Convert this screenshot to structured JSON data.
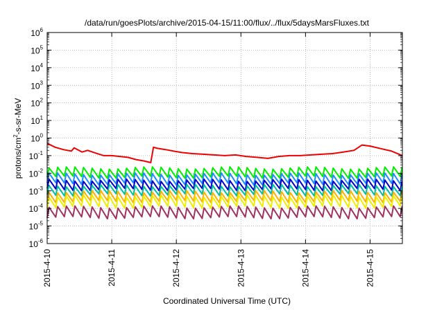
{
  "chart_data": {
    "type": "line",
    "title": "/data/run/goesPlots/archive/2015-04-15/11:00/flux/../flux/5daysMarsFluxes.txt",
    "xlabel": "Coordinated Universal Time (UTC)",
    "ylabel": {
      "pre": "protons/cm",
      "sup": "2",
      "post": "-s-sr-MeV"
    },
    "y_scale": "log",
    "ylim": [
      1e-06,
      1000000.0
    ],
    "y_ticks": [
      {
        "value": 1e-06,
        "base": "10",
        "exp": "-6"
      },
      {
        "value": 1e-05,
        "base": "10",
        "exp": "-5"
      },
      {
        "value": 0.0001,
        "base": "10",
        "exp": "-4"
      },
      {
        "value": 0.001,
        "base": "10",
        "exp": "-3"
      },
      {
        "value": 0.01,
        "base": "10",
        "exp": "-2"
      },
      {
        "value": 0.1,
        "base": "10",
        "exp": "-1"
      },
      {
        "value": 1,
        "base": "10",
        "exp": "0"
      },
      {
        "value": 10,
        "base": "10",
        "exp": "1"
      },
      {
        "value": 100,
        "base": "10",
        "exp": "2"
      },
      {
        "value": 1000,
        "base": "10",
        "exp": "3"
      },
      {
        "value": 10000,
        "base": "10",
        "exp": "4"
      },
      {
        "value": 100000,
        "base": "10",
        "exp": "5"
      },
      {
        "value": 1000000,
        "base": "10",
        "exp": "6"
      }
    ],
    "xlim": [
      "2015-04-10T00:00",
      "2015-04-15T12:00"
    ],
    "x_ticks": [
      "2015-4-10",
      "2015-4-11",
      "2015-4-12",
      "2015-4-13",
      "2015-4-14",
      "2015-4-15"
    ],
    "grid": true,
    "legend": "none",
    "series": [
      {
        "color": "#ee0000",
        "x": [
          "2015-04-10T00:00",
          "2015-04-10T03:00",
          "2015-04-10T06:00",
          "2015-04-10T09:00",
          "2015-04-10T10:00",
          "2015-04-10T13:00",
          "2015-04-10T15:00",
          "2015-04-10T18:00",
          "2015-04-10T21:00",
          "2015-04-11T00:00",
          "2015-04-11T03:00",
          "2015-04-11T06:00",
          "2015-04-11T09:00",
          "2015-04-11T12:00",
          "2015-04-11T14:30",
          "2015-04-11T15:30",
          "2015-04-11T17:00",
          "2015-04-11T20:00",
          "2015-04-11T23:00",
          "2015-04-12T02:00",
          "2015-04-12T06:00",
          "2015-04-12T10:00",
          "2015-04-12T14:00",
          "2015-04-12T18:00",
          "2015-04-12T22:00",
          "2015-04-13T02:00",
          "2015-04-13T06:00",
          "2015-04-13T10:00",
          "2015-04-13T14:00",
          "2015-04-13T18:00",
          "2015-04-13T22:00",
          "2015-04-14T02:00",
          "2015-04-14T06:00",
          "2015-04-14T10:00",
          "2015-04-14T14:00",
          "2015-04-14T18:00",
          "2015-04-14T21:00",
          "2015-04-15T00:00",
          "2015-04-15T04:00",
          "2015-04-15T08:00",
          "2015-04-15T12:00"
        ],
        "y": [
          0.5,
          0.3,
          0.22,
          0.18,
          0.28,
          0.16,
          0.2,
          0.14,
          0.1,
          0.1,
          0.09,
          0.08,
          0.06,
          0.05,
          0.04,
          0.3,
          0.26,
          0.22,
          0.18,
          0.15,
          0.13,
          0.12,
          0.11,
          0.1,
          0.11,
          0.09,
          0.08,
          0.07,
          0.09,
          0.1,
          0.1,
          0.11,
          0.12,
          0.13,
          0.16,
          0.2,
          0.4,
          0.35,
          0.25,
          0.18,
          0.1
        ]
      }
    ],
    "oscillating_series": [
      {
        "color": "#00ee00",
        "low": 0.006,
        "high": 0.02
      },
      {
        "color": "#1d8bff",
        "low": 0.0025,
        "high": 0.009
      },
      {
        "color": "#0000cc",
        "low": 0.0012,
        "high": 0.004
      },
      {
        "color": "#00c0a0",
        "low": 0.0006,
        "high": 0.002
      },
      {
        "color": "#ffb000",
        "low": 0.00025,
        "high": 0.0009
      },
      {
        "color": "#eeee00",
        "low": 0.00012,
        "high": 0.0005
      },
      {
        "color": "#a03060",
        "low": 3e-05,
        "high": 0.00012
      }
    ],
    "oscillation_period_hours": 3.2
  }
}
